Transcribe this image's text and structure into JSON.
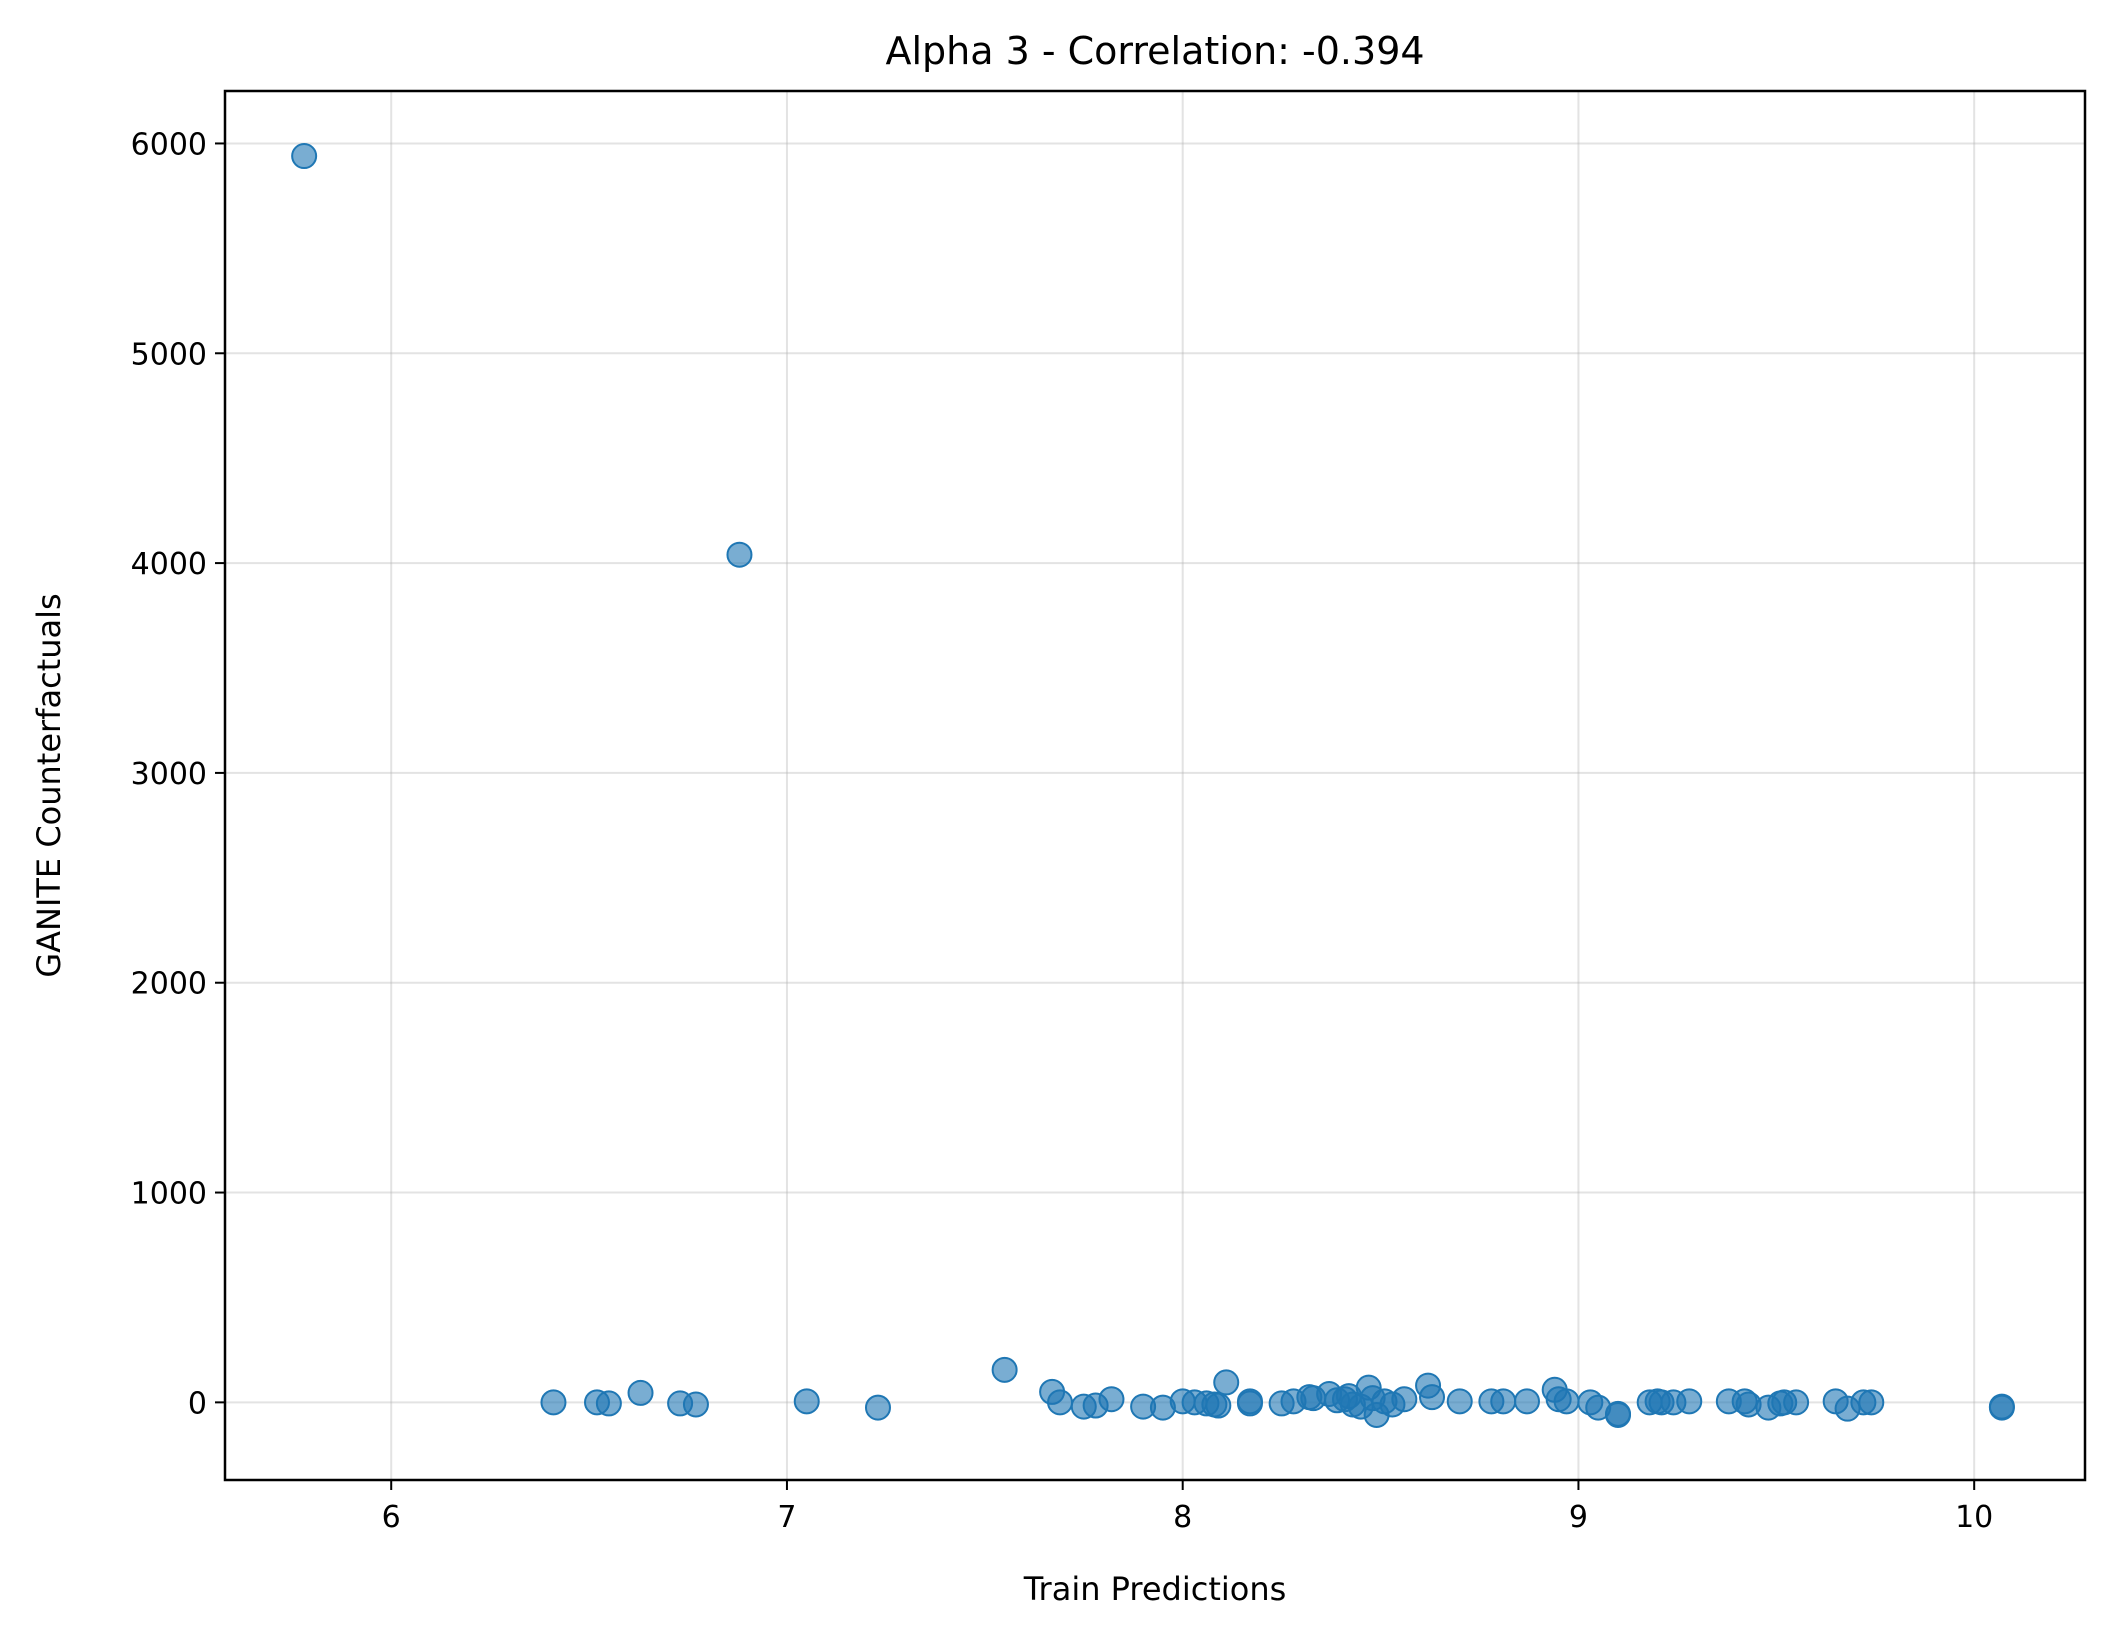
{
  "chart_data": {
    "type": "scatter",
    "title": "Alpha 3 - Correlation: -0.394",
    "xlabel": "Train Predictions",
    "ylabel": "GANITE Counterfactuals",
    "xlim": [
      5.58,
      10.28
    ],
    "ylim": [
      -370,
      6250
    ],
    "xticks": [
      6,
      7,
      8,
      9,
      10
    ],
    "yticks": [
      0,
      1000,
      2000,
      3000,
      4000,
      5000,
      6000
    ],
    "grid": true,
    "color": "#1f77b4",
    "points": [
      {
        "x": 5.78,
        "y": 5940
      },
      {
        "x": 6.88,
        "y": 4040
      },
      {
        "x": 6.41,
        "y": 0
      },
      {
        "x": 6.52,
        "y": 0
      },
      {
        "x": 6.55,
        "y": -5
      },
      {
        "x": 6.63,
        "y": 45
      },
      {
        "x": 6.73,
        "y": -5
      },
      {
        "x": 6.77,
        "y": -10
      },
      {
        "x": 7.05,
        "y": 5
      },
      {
        "x": 7.23,
        "y": -25
      },
      {
        "x": 7.55,
        "y": 155
      },
      {
        "x": 7.67,
        "y": 50
      },
      {
        "x": 7.69,
        "y": 0
      },
      {
        "x": 7.75,
        "y": -20
      },
      {
        "x": 7.78,
        "y": -15
      },
      {
        "x": 7.82,
        "y": 15
      },
      {
        "x": 7.9,
        "y": -20
      },
      {
        "x": 7.95,
        "y": -25
      },
      {
        "x": 8.0,
        "y": 5
      },
      {
        "x": 8.03,
        "y": 0
      },
      {
        "x": 8.06,
        "y": -5
      },
      {
        "x": 8.08,
        "y": -10
      },
      {
        "x": 8.09,
        "y": -15
      },
      {
        "x": 8.11,
        "y": 95
      },
      {
        "x": 8.17,
        "y": -5
      },
      {
        "x": 8.17,
        "y": 5
      },
      {
        "x": 8.25,
        "y": -5
      },
      {
        "x": 8.28,
        "y": 5
      },
      {
        "x": 8.32,
        "y": 25
      },
      {
        "x": 8.33,
        "y": 20
      },
      {
        "x": 8.37,
        "y": 40
      },
      {
        "x": 8.39,
        "y": 10
      },
      {
        "x": 8.41,
        "y": 15
      },
      {
        "x": 8.42,
        "y": 30
      },
      {
        "x": 8.43,
        "y": -10
      },
      {
        "x": 8.45,
        "y": -20
      },
      {
        "x": 8.47,
        "y": 70
      },
      {
        "x": 8.48,
        "y": 20
      },
      {
        "x": 8.49,
        "y": -60
      },
      {
        "x": 8.51,
        "y": 5
      },
      {
        "x": 8.53,
        "y": -10
      },
      {
        "x": 8.56,
        "y": 15
      },
      {
        "x": 8.62,
        "y": 80
      },
      {
        "x": 8.63,
        "y": 25
      },
      {
        "x": 8.7,
        "y": 5
      },
      {
        "x": 8.78,
        "y": 5
      },
      {
        "x": 8.81,
        "y": 5
      },
      {
        "x": 8.87,
        "y": 5
      },
      {
        "x": 8.94,
        "y": 60
      },
      {
        "x": 8.95,
        "y": 15
      },
      {
        "x": 8.97,
        "y": 5
      },
      {
        "x": 9.03,
        "y": 0
      },
      {
        "x": 9.05,
        "y": -25
      },
      {
        "x": 9.1,
        "y": -55
      },
      {
        "x": 9.1,
        "y": -60
      },
      {
        "x": 9.18,
        "y": 0
      },
      {
        "x": 9.2,
        "y": 5
      },
      {
        "x": 9.21,
        "y": 0
      },
      {
        "x": 9.24,
        "y": 0
      },
      {
        "x": 9.28,
        "y": 5
      },
      {
        "x": 9.38,
        "y": 5
      },
      {
        "x": 9.42,
        "y": 5
      },
      {
        "x": 9.43,
        "y": -10
      },
      {
        "x": 9.48,
        "y": -25
      },
      {
        "x": 9.51,
        "y": -5
      },
      {
        "x": 9.52,
        "y": 0
      },
      {
        "x": 9.55,
        "y": 0
      },
      {
        "x": 9.65,
        "y": 5
      },
      {
        "x": 9.68,
        "y": -30
      },
      {
        "x": 9.72,
        "y": 0
      },
      {
        "x": 9.74,
        "y": 0
      },
      {
        "x": 10.07,
        "y": -20
      },
      {
        "x": 10.07,
        "y": -25
      }
    ]
  }
}
